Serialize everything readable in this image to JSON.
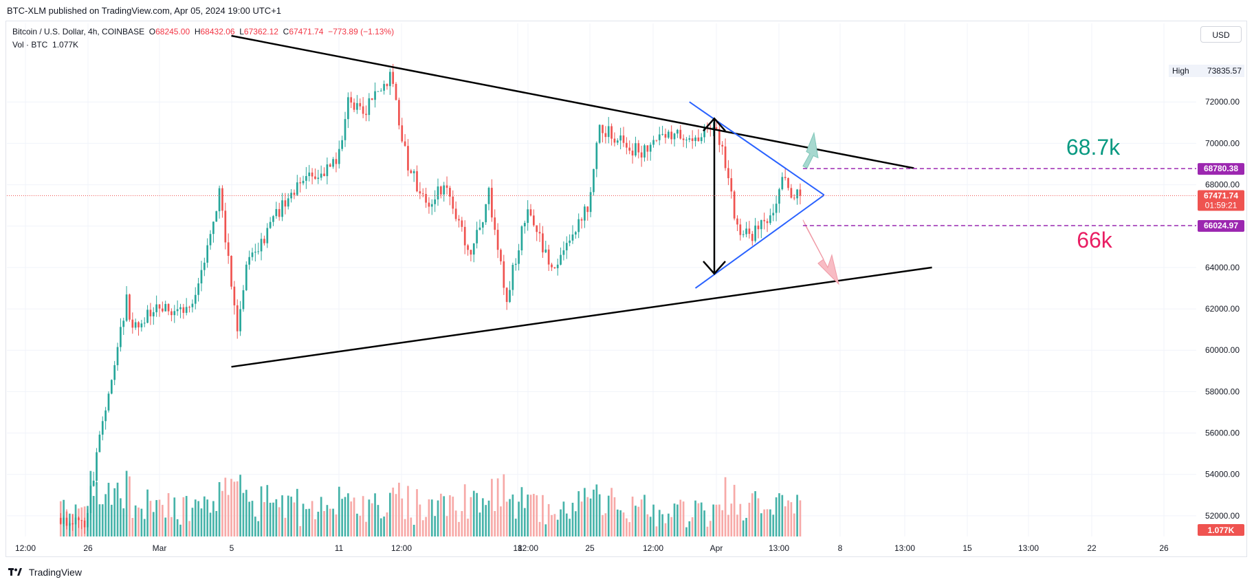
{
  "header": {
    "published": "BTC-XLM published on TradingView.com, Apr 05, 2024 19:00 UTC+1"
  },
  "legend": {
    "symbol": "Bitcoin / U.S. Dollar, 4h, COINBASE",
    "o_label": "O",
    "o": "68245.00",
    "h_label": "H",
    "h": "68432.06",
    "l_label": "L",
    "l": "67362.12",
    "c_label": "C",
    "c": "67471.74",
    "change": "−773.89 (−1.13%)",
    "vol_label": "Vol · BTC",
    "vol": "1.077K"
  },
  "currency_button": "USD",
  "brand": {
    "name": "TradingView"
  },
  "colors": {
    "up": "#26a69a",
    "down": "#ef5350",
    "up_vol": "#26a69a",
    "down_vol": "#f7a9a7",
    "trend": "#000000",
    "triangle": "#2962ff",
    "level": "#9c27b0",
    "target_up": "#089981",
    "target_down": "#e91e63"
  },
  "chart_data": {
    "type": "candlestick",
    "title": "Bitcoin / U.S. Dollar, 4h, COINBASE",
    "x_tick_labels": [
      "12:00",
      "26",
      "Mar",
      "5",
      "11",
      "12:00",
      "18",
      "12:00",
      "25",
      "12:00",
      "Apr",
      "13:00",
      "8",
      "13:00",
      "15",
      "13:00",
      "22",
      "26"
    ],
    "y_ticks": [
      52000,
      54000,
      56000,
      58000,
      60000,
      62000,
      64000,
      66000,
      68000,
      70000,
      72000
    ],
    "y_tick_labels": [
      "52000.00",
      "54000.00",
      "56000.00",
      "58000.00",
      "60000.00",
      "62000.00",
      "64000.00",
      "66000.00",
      "68000.00",
      "70000.00",
      "72000.00"
    ],
    "ylim": [
      51000,
      74800
    ],
    "current_price": "67471.74",
    "countdown": "01:59:21",
    "high_label": "High",
    "high_value": "73835.57",
    "levels": [
      {
        "price": 68780.38,
        "label": "68780.38",
        "annotation": "68.7k"
      },
      {
        "price": 66024.97,
        "label": "66024.97",
        "annotation": "66k"
      }
    ],
    "volume_label": "1.077K",
    "anchors": [
      {
        "date": "2024-02-24 12:00",
        "price": 51900
      },
      {
        "date": "2024-02-26 00:00",
        "price": 51500
      },
      {
        "date": "2024-02-27 00:00",
        "price": 56500
      },
      {
        "date": "2024-02-28 08:00",
        "price": 62500
      },
      {
        "date": "2024-02-28 16:00",
        "price": 61000
      },
      {
        "date": "2024-03-01 00:00",
        "price": 62000
      },
      {
        "date": "2024-03-03 00:00",
        "price": 62000
      },
      {
        "date": "2024-03-04 12:00",
        "price": 67500
      },
      {
        "date": "2024-03-05 12:00",
        "price": 61000
      },
      {
        "date": "2024-03-06 00:00",
        "price": 64000
      },
      {
        "date": "2024-03-08 00:00",
        "price": 67000
      },
      {
        "date": "2024-03-09 00:00",
        "price": 68000
      },
      {
        "date": "2024-03-11 00:00",
        "price": 69000
      },
      {
        "date": "2024-03-11 16:00",
        "price": 72000
      },
      {
        "date": "2024-03-12 12:00",
        "price": 71500
      },
      {
        "date": "2024-03-14 00:00",
        "price": 73300
      },
      {
        "date": "2024-03-15 00:00",
        "price": 69000
      },
      {
        "date": "2024-03-16 00:00",
        "price": 67000
      },
      {
        "date": "2024-03-17 00:00",
        "price": 68000
      },
      {
        "date": "2024-03-18 12:00",
        "price": 64500
      },
      {
        "date": "2024-03-19 12:00",
        "price": 67500
      },
      {
        "date": "2024-03-20 12:00",
        "price": 62500
      },
      {
        "date": "2024-03-21 16:00",
        "price": 67000
      },
      {
        "date": "2024-03-23 00:00",
        "price": 63800
      },
      {
        "date": "2024-03-25 00:00",
        "price": 67000
      },
      {
        "date": "2024-03-25 16:00",
        "price": 70800
      },
      {
        "date": "2024-03-27 00:00",
        "price": 70000
      },
      {
        "date": "2024-03-28 00:00",
        "price": 69500
      },
      {
        "date": "2024-03-29 12:00",
        "price": 70500
      },
      {
        "date": "2024-03-31 00:00",
        "price": 70000
      },
      {
        "date": "2024-04-01 00:00",
        "price": 71000
      },
      {
        "date": "2024-04-01 12:00",
        "price": 69800
      },
      {
        "date": "2024-04-02 08:00",
        "price": 65800
      },
      {
        "date": "2024-04-03 00:00",
        "price": 65500
      },
      {
        "date": "2024-04-03 16:00",
        "price": 66000
      },
      {
        "date": "2024-04-04 08:00",
        "price": 66500
      },
      {
        "date": "2024-04-04 20:00",
        "price": 68400
      },
      {
        "date": "2024-04-05 08:00",
        "price": 67300
      },
      {
        "date": "2024-04-05 16:00",
        "price": 67471.74
      }
    ],
    "trendlines": [
      {
        "name": "upper",
        "from": {
          "date": "2024-03-05 00:00",
          "price": 75200
        },
        "to": {
          "date": "2024-04-12 00:00",
          "price": 68800
        }
      },
      {
        "name": "lower",
        "from": {
          "date": "2024-03-05 00:00",
          "price": 59200
        },
        "to": {
          "date": "2024-04-13 00:00",
          "price": 64000
        }
      },
      {
        "name": "triangle-upper",
        "from": {
          "date": "2024-03-30 12:00",
          "price": 72000
        },
        "to": {
          "date": "2024-04-07 00:00",
          "price": 67500
        }
      },
      {
        "name": "triangle-lower",
        "from": {
          "date": "2024-03-30 20:00",
          "price": 63000
        },
        "to": {
          "date": "2024-04-07 00:00",
          "price": 67500
        }
      }
    ]
  }
}
